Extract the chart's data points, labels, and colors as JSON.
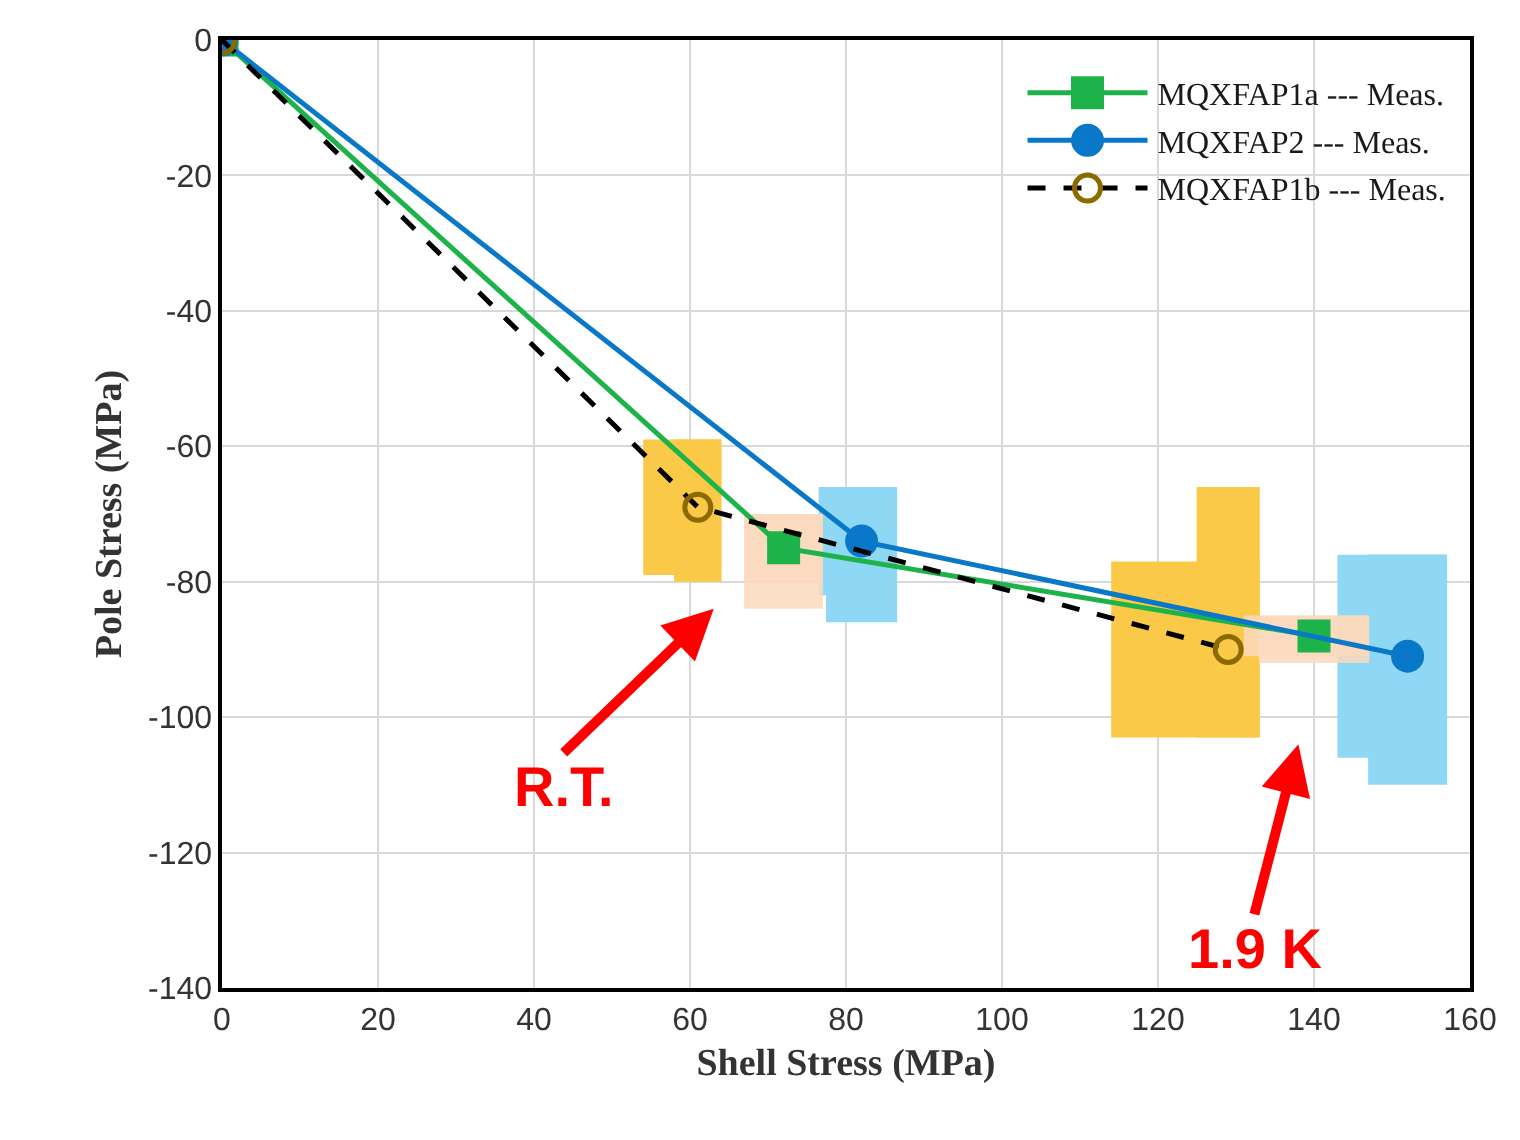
{
  "chart_data": {
    "type": "line",
    "xlabel": "Shell Stress (MPa)",
    "ylabel": "Pole Stress (MPa)",
    "xlim": [
      0,
      160
    ],
    "xticks": [
      0,
      20,
      40,
      60,
      80,
      100,
      120,
      140,
      160
    ],
    "ylim": [
      -140,
      0
    ],
    "yticks": [
      -140,
      -120,
      -100,
      -80,
      -60,
      -40,
      -20,
      0
    ],
    "grid": true,
    "legend": "top right",
    "series": [
      {
        "name": "MQXFAP1a --- Meas.",
        "color": "#1db34a",
        "marker": "square",
        "line_style": "solid",
        "x": [
          0,
          72,
          140
        ],
        "values": [
          0,
          -75,
          -88
        ],
        "xerrors": [
          null,
          [
            67,
            77
          ],
          [
            131,
            147
          ]
        ],
        "errors": [
          null,
          [
            -84,
            -70
          ],
          [
            -92,
            -85
          ]
        ]
      },
      {
        "name": "MQXFAP2 --- Meas.",
        "color": "#0a78c8",
        "marker": "circle",
        "line_style": "solid",
        "x": [
          0,
          82,
          152
        ],
        "values": [
          0,
          -74,
          -91
        ],
        "xerrors": [
          null,
          [
            76.5,
            86.5
          ],
          [
            143,
            157
          ]
        ],
        "errors": [
          null,
          [
            -86,
            -66
          ],
          [
            -110,
            -76
          ]
        ]
      },
      {
        "name": "MQXFAP1b --- Meas.",
        "color": "#000000",
        "marker": "circle-open",
        "line_style": "dashed",
        "x": [
          0,
          61,
          129
        ],
        "values": [
          0,
          -69,
          -90
        ],
        "xerrors": [
          null,
          [
            54,
            64
          ],
          [
            114,
            133
          ]
        ],
        "errors": [
          null,
          [
            -80,
            -59
          ],
          [
            -103,
            -66
          ]
        ]
      }
    ],
    "annotations": [
      "R.T.",
      "1.9 K"
    ]
  }
}
